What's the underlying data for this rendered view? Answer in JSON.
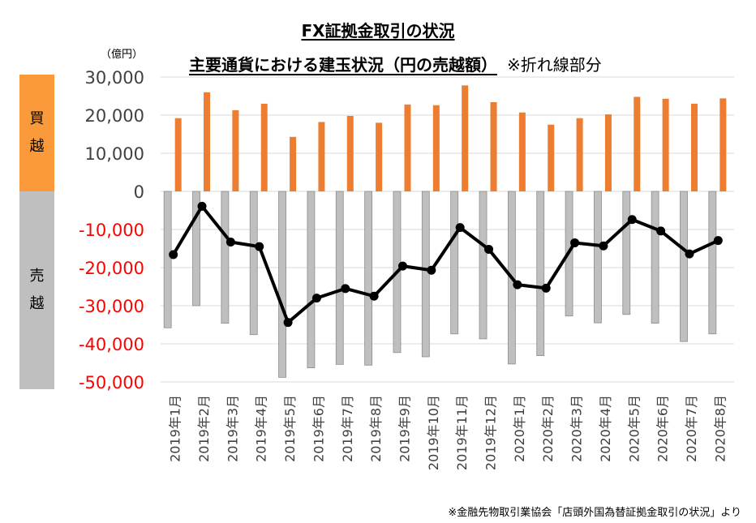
{
  "title": "FX証拠金取引の状況",
  "subtitle": "主要通貨における建玉状況（円の売越額）",
  "subtitle_note": "※折れ線部分",
  "unit_label": "（億円）",
  "band_buy": [
    "買",
    "越"
  ],
  "band_sell": [
    "売",
    "越"
  ],
  "source": "※金融先物取引業協会「店頭外国為替証拠金取引の状況」より",
  "colors": {
    "buy_bar": "#ed7d31",
    "sell_bar": "#bfbfbf",
    "sell_bar_edge": "#8c8c8c",
    "line": "#000000",
    "positive_tick": "#404040",
    "negative_tick": "#ff0000",
    "band_buy": "#fa9a3a",
    "band_sell": "#bfbfbf",
    "grid": "#d9d9d9"
  },
  "chart_data": {
    "type": "bar",
    "categories": [
      "2019年1月",
      "2019年2月",
      "2019年3月",
      "2019年4月",
      "2019年5月",
      "2019年6月",
      "2019年7月",
      "2019年8月",
      "2019年9月",
      "2019年10月",
      "2019年11月",
      "2019年12月",
      "2020年1月",
      "2020年2月",
      "2020年3月",
      "2020年4月",
      "2020年5月",
      "2020年6月",
      "2020年7月",
      "2020年8月"
    ],
    "ylim": [
      -50000,
      30000
    ],
    "yticks": [
      30000,
      20000,
      10000,
      0,
      -10000,
      -20000,
      -30000,
      -40000,
      -50000
    ],
    "ytick_labels": [
      "30,000",
      "20,000",
      "10,000",
      "0",
      "-10,000",
      "-20,000",
      "-30,000",
      "-40,000",
      "-50,000"
    ],
    "grid": true,
    "series": [
      {
        "kind": "bar",
        "role": "buy",
        "values": [
          19200,
          26000,
          21300,
          23000,
          14300,
          18200,
          19800,
          18000,
          22800,
          22600,
          27800,
          23400,
          20700,
          17500,
          19200,
          20200,
          24800,
          24300,
          23000,
          24400
        ]
      },
      {
        "kind": "bar",
        "role": "sell",
        "values": [
          -35800,
          -30000,
          -34600,
          -37600,
          -48800,
          -46300,
          -45400,
          -45600,
          -42300,
          -43400,
          -37400,
          -38700,
          -45300,
          -43100,
          -32700,
          -34500,
          -32300,
          -34600,
          -39400,
          -37400
        ]
      },
      {
        "kind": "line",
        "role": "net",
        "values": [
          -16600,
          -3900,
          -13300,
          -14500,
          -34400,
          -28000,
          -25500,
          -27500,
          -19600,
          -20700,
          -9500,
          -15200,
          -24500,
          -25400,
          -13500,
          -14300,
          -7400,
          -10400,
          -16400,
          -12900
        ]
      }
    ]
  }
}
